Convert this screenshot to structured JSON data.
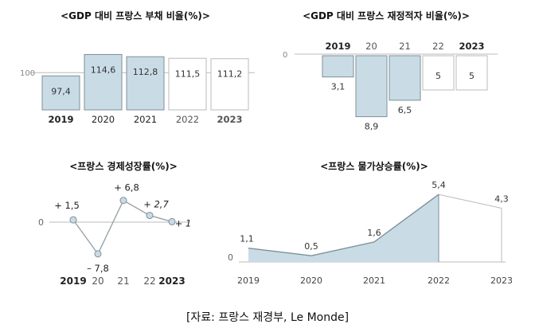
{
  "colors": {
    "fill": "#c9dce6",
    "stroke": "#7e8f98",
    "neutral": "#bbbbbb",
    "text": "#333333"
  },
  "source": "[자료: 프랑스 재경부, Le Monde]",
  "chart_data": [
    {
      "id": "debt",
      "type": "bar",
      "title": "<GDP 대비 프랑스 부채 비율(%)>",
      "categories": [
        "2019",
        "2020",
        "2021",
        "2022",
        "2023"
      ],
      "values": [
        97.4,
        114.6,
        112.8,
        111.5,
        111.2
      ],
      "value_labels": [
        "97,4",
        "114,6",
        "112,8",
        "111,5",
        "111,2"
      ],
      "filled": [
        true,
        true,
        true,
        false,
        false
      ],
      "reference_line": {
        "value": 100,
        "label": "100"
      },
      "ylim": [
        70,
        120
      ]
    },
    {
      "id": "deficit",
      "type": "bar",
      "title": "<GDP 대비 프랑스 재정적자 비율(%)>",
      "categories": [
        "2019",
        "20",
        "21",
        "22",
        "2023"
      ],
      "values": [
        -3.1,
        -8.9,
        -6.5,
        -5,
        -5
      ],
      "value_labels": [
        "3,1",
        "8,9",
        "6,5",
        "5",
        "5"
      ],
      "filled": [
        true,
        true,
        true,
        false,
        false
      ],
      "zero_label": "0",
      "ylim": [
        -10,
        0
      ]
    },
    {
      "id": "growth",
      "type": "line",
      "title": "<프랑스 경제성장률(%)>",
      "categories": [
        "2019",
        "20",
        "21",
        "22",
        "2023"
      ],
      "values": [
        1.5,
        -7.8,
        6.8,
        2.7,
        1
      ],
      "value_labels": [
        "+ 1,5",
        "– 7,8",
        "+ 6,8",
        "+ 2,7",
        "+ 1"
      ],
      "zero_label": "0",
      "ylim": [
        -9,
        8
      ]
    },
    {
      "id": "inflation",
      "type": "area",
      "title": "<프랑스 물가상승률(%)>",
      "categories": [
        "2019",
        "2020",
        "2021",
        "2022",
        "2023"
      ],
      "values": [
        1.1,
        0.5,
        1.6,
        5.4,
        4.3
      ],
      "value_labels": [
        "1,1",
        "0,5",
        "1,6",
        "5,4",
        "4,3"
      ],
      "filled": [
        true,
        true,
        true,
        true,
        false
      ],
      "zero_label": "0",
      "ylim": [
        0,
        5.4
      ]
    }
  ]
}
